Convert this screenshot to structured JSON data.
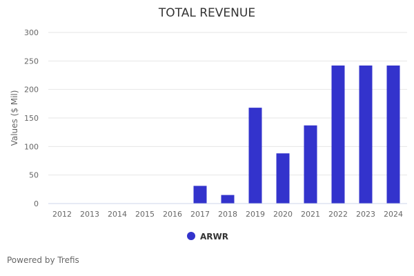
{
  "chart_data": {
    "type": "bar",
    "title": "TOTAL REVENUE",
    "xlabel": "",
    "ylabel": "Values ($ Mil)",
    "ylim": [
      0,
      300
    ],
    "yticks": [
      0,
      50,
      100,
      150,
      200,
      250,
      300
    ],
    "grid": true,
    "legend_position": "bottom-center",
    "categories": [
      "2012",
      "2013",
      "2014",
      "2015",
      "2016",
      "2017",
      "2018",
      "2019",
      "2020",
      "2021",
      "2022",
      "2023",
      "2024"
    ],
    "series": [
      {
        "name": "ARWR",
        "color": "#3333cc",
        "values": [
          0,
          0,
          0,
          0,
          0,
          31,
          15,
          168,
          88,
          137,
          242,
          242,
          242
        ]
      }
    ]
  },
  "footer": {
    "credit": "Powered by Trefis"
  }
}
